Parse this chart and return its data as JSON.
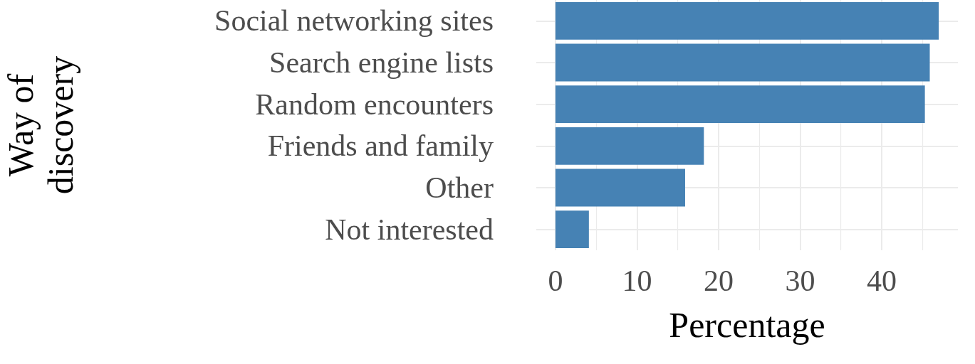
{
  "chart_data": {
    "type": "bar",
    "orientation": "horizontal",
    "xlabel": "Percentage",
    "ylabel": "Way of\ndiscovery",
    "categories": [
      "Social networking sites",
      "Search engine lists",
      "Random encounters",
      "Friends and family",
      "Other",
      "Not interested"
    ],
    "values": [
      47.0,
      45.9,
      45.3,
      18.2,
      15.9,
      4.1
    ],
    "color": "#4682b4",
    "xlim": [
      -2.35,
      49.35
    ],
    "xticks": [
      0,
      10,
      20,
      30,
      40
    ],
    "grid": true
  }
}
